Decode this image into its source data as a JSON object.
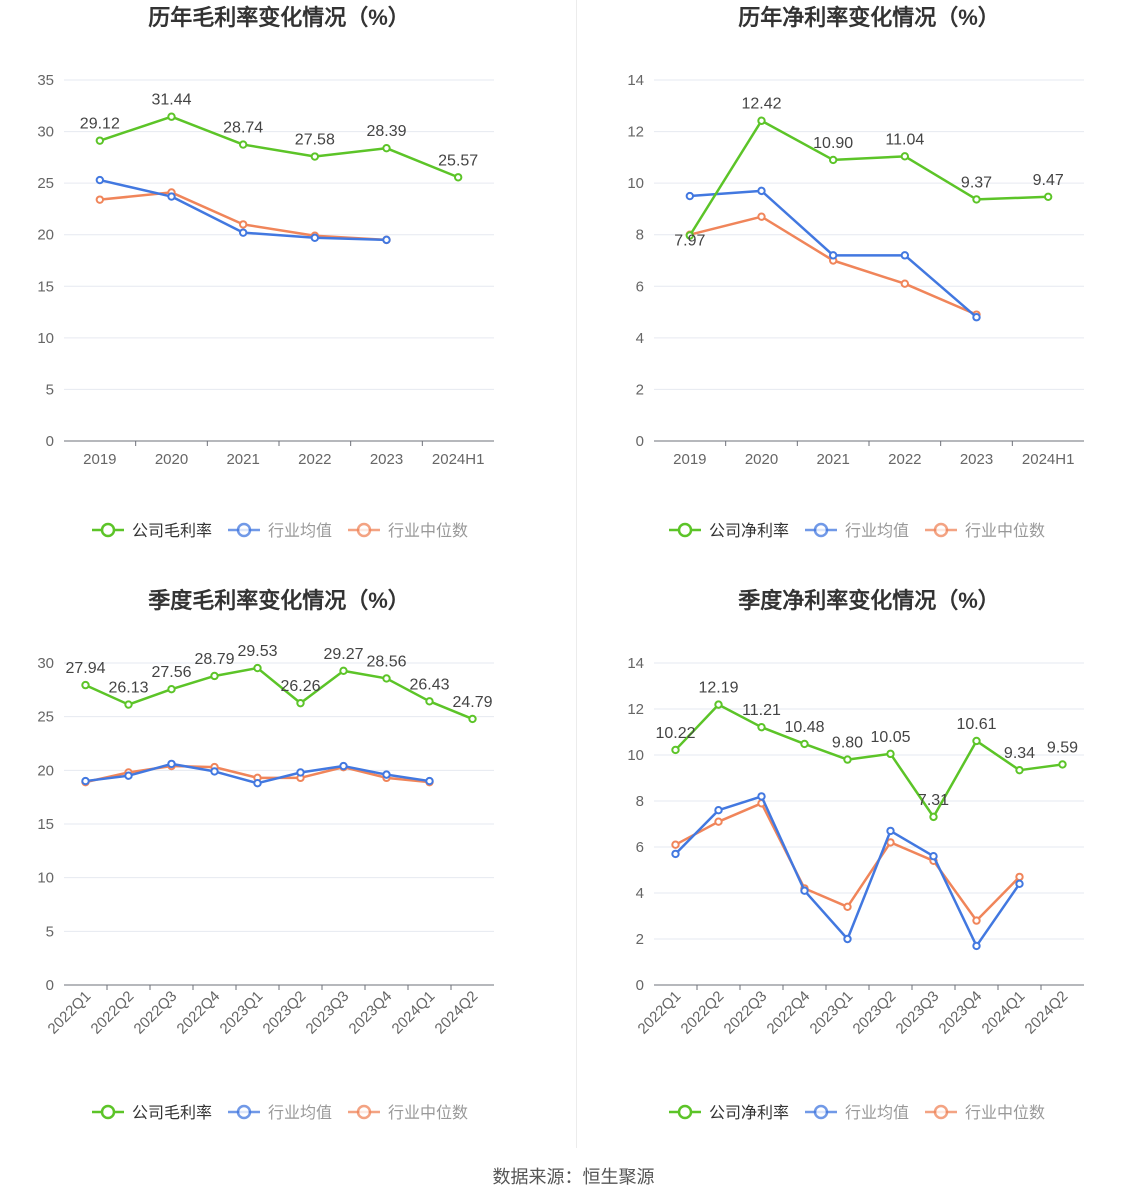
{
  "source_text": "数据来源：恒生聚源",
  "colors": {
    "company": "#5cc428",
    "avg": "#4278e0",
    "median": "#f0855a"
  },
  "chart_data": [
    {
      "type": "line",
      "title": "历年毛利率变化情况（%）",
      "categories": [
        "2019",
        "2020",
        "2021",
        "2022",
        "2023",
        "2024H1"
      ],
      "ylim": [
        0,
        35
      ],
      "yticks": [
        0,
        5,
        10,
        15,
        20,
        25,
        30,
        35
      ],
      "grid": true,
      "legend": "bottom",
      "series": [
        {
          "name": "公司毛利率",
          "values": [
            29.12,
            31.44,
            28.74,
            27.58,
            28.39,
            25.57
          ],
          "labels": true
        },
        {
          "name": "行业均值",
          "values": [
            25.3,
            23.7,
            20.2,
            19.7,
            19.5,
            null
          ]
        },
        {
          "name": "行业中位数",
          "values": [
            23.4,
            24.1,
            21.0,
            19.9,
            19.5,
            null
          ]
        }
      ]
    },
    {
      "type": "line",
      "title": "历年净利率变化情况（%）",
      "categories": [
        "2019",
        "2020",
        "2021",
        "2022",
        "2023",
        "2024H1"
      ],
      "ylim": [
        0,
        14
      ],
      "yticks": [
        0,
        2,
        4,
        6,
        8,
        10,
        12,
        14
      ],
      "grid": true,
      "legend": "bottom",
      "series": [
        {
          "name": "公司净利率",
          "values": [
            7.97,
            12.42,
            10.9,
            11.04,
            9.37,
            9.47
          ],
          "labels": true
        },
        {
          "name": "行业均值",
          "values": [
            9.5,
            9.7,
            7.2,
            7.2,
            4.8,
            null
          ]
        },
        {
          "name": "行业中位数",
          "values": [
            8.0,
            8.7,
            7.0,
            6.1,
            4.9,
            null
          ]
        }
      ]
    },
    {
      "type": "line",
      "title": "季度毛利率变化情况（%）",
      "categories": [
        "2022Q1",
        "2022Q2",
        "2022Q3",
        "2022Q4",
        "2023Q1",
        "2023Q2",
        "2023Q3",
        "2023Q4",
        "2024Q1",
        "2024Q2"
      ],
      "ylim": [
        0,
        30
      ],
      "yticks": [
        0,
        5,
        10,
        15,
        20,
        25,
        30
      ],
      "grid": true,
      "legend": "bottom",
      "series": [
        {
          "name": "公司毛利率",
          "values": [
            27.94,
            26.13,
            27.56,
            28.79,
            29.53,
            26.26,
            29.27,
            28.56,
            26.43,
            24.79
          ],
          "labels": true
        },
        {
          "name": "行业均值",
          "values": [
            19.0,
            19.5,
            20.6,
            19.9,
            18.8,
            19.8,
            20.4,
            19.6,
            19.0,
            null
          ]
        },
        {
          "name": "行业中位数",
          "values": [
            18.9,
            19.8,
            20.4,
            20.3,
            19.3,
            19.3,
            20.3,
            19.3,
            18.9,
            null
          ]
        }
      ]
    },
    {
      "type": "line",
      "title": "季度净利率变化情况（%）",
      "categories": [
        "2022Q1",
        "2022Q2",
        "2022Q3",
        "2022Q4",
        "2023Q1",
        "2023Q2",
        "2023Q3",
        "2023Q4",
        "2024Q1",
        "2024Q2"
      ],
      "ylim": [
        0,
        14
      ],
      "yticks": [
        0,
        2,
        4,
        6,
        8,
        10,
        12,
        14
      ],
      "grid": true,
      "legend": "bottom",
      "series": [
        {
          "name": "公司净利率",
          "values": [
            10.22,
            12.19,
            11.21,
            10.48,
            9.8,
            10.05,
            7.31,
            10.61,
            9.34,
            9.59
          ],
          "labels": true
        },
        {
          "name": "行业均值",
          "values": [
            5.7,
            7.6,
            8.2,
            4.1,
            2.0,
            6.7,
            5.6,
            1.7,
            4.4,
            null
          ]
        },
        {
          "name": "行业中位数",
          "values": [
            6.1,
            7.1,
            7.9,
            4.2,
            3.4,
            6.2,
            5.4,
            2.8,
            4.7,
            null
          ]
        }
      ]
    }
  ]
}
